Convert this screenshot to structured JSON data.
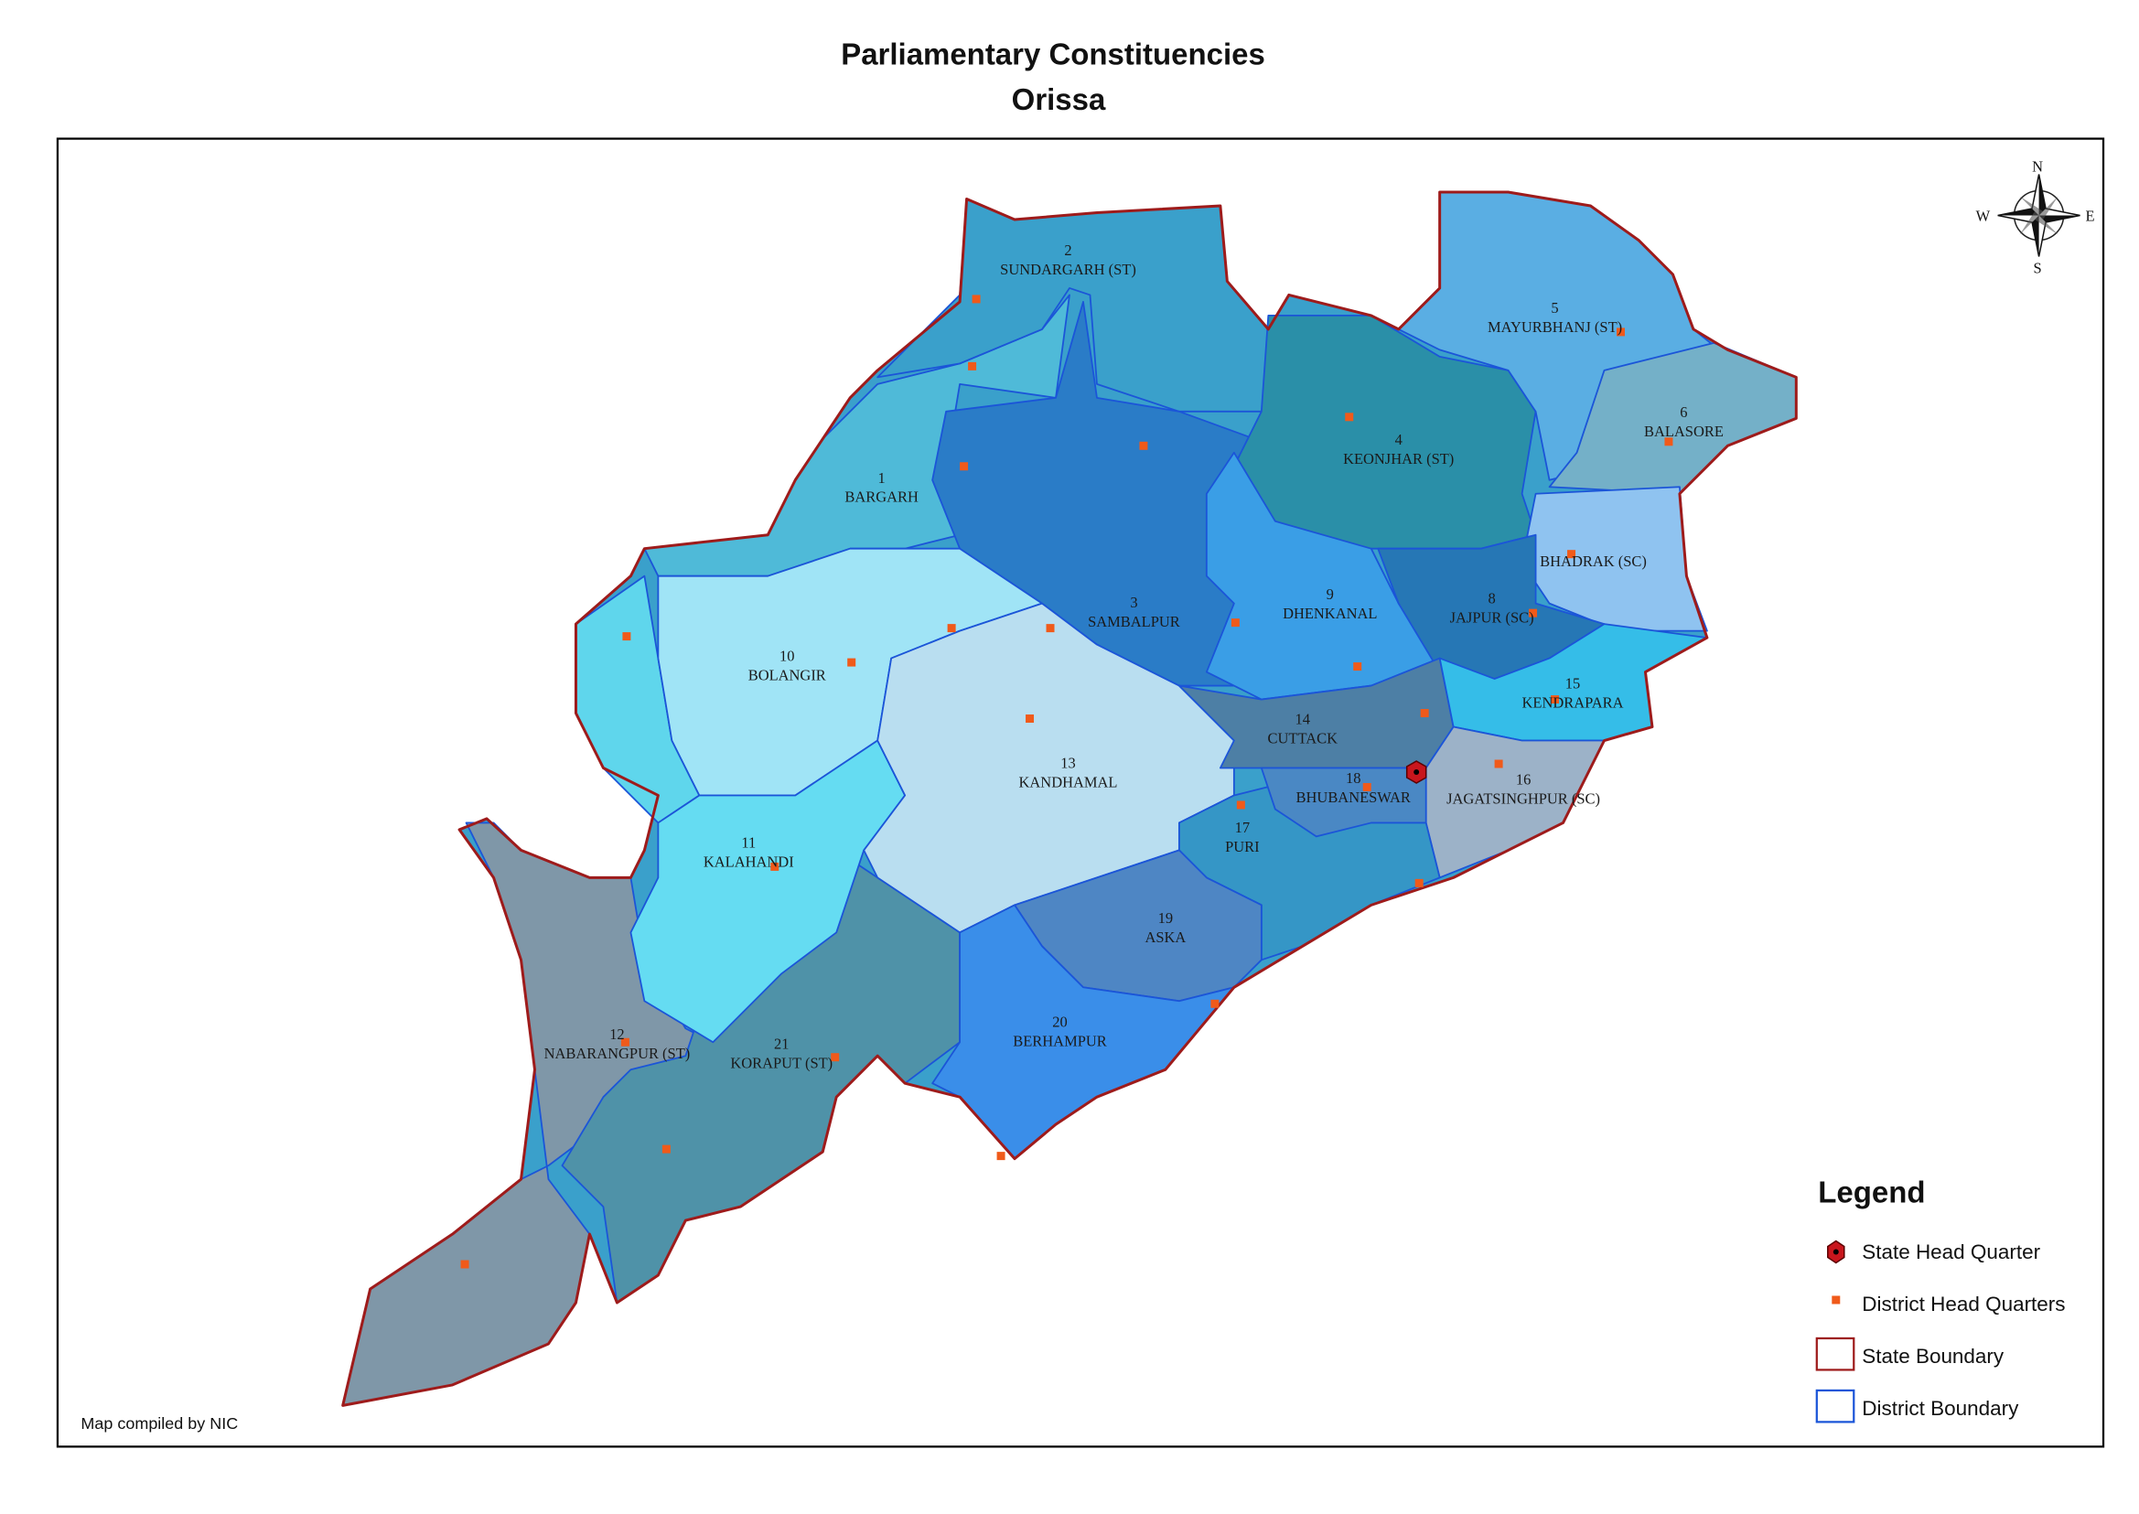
{
  "header": {
    "title": "Parliamentary Constituencies",
    "subtitle": "Orissa"
  },
  "constituencies": [
    {
      "number": 1,
      "name": "BARGARH"
    },
    {
      "number": 2,
      "name": "SUNDARGARH (ST)"
    },
    {
      "number": 3,
      "name": "SAMBALPUR"
    },
    {
      "number": 4,
      "name": "KEONJHAR (ST)"
    },
    {
      "number": 5,
      "name": "MAYURBHANJ (ST)"
    },
    {
      "number": 6,
      "name": "BALASORE"
    },
    {
      "name": "BHADRAK (SC)"
    },
    {
      "number": 8,
      "name": "JAJPUR (SC)"
    },
    {
      "number": 9,
      "name": "DHENKANAL"
    },
    {
      "number": 10,
      "name": "BOLANGIR"
    },
    {
      "number": 11,
      "name": "KALAHANDI"
    },
    {
      "number": 12,
      "name": "NABARANGPUR (ST)"
    },
    {
      "number": 13,
      "name": "KANDHAMAL"
    },
    {
      "number": 14,
      "name": "CUTTACK"
    },
    {
      "number": 15,
      "name": "KENDRAPARA"
    },
    {
      "number": 16,
      "name": "JAGATSINGHPUR (SC)"
    },
    {
      "number": 17,
      "name": "PURI"
    },
    {
      "number": 18,
      "name": "BHUBANESWAR"
    },
    {
      "number": 19,
      "name": "ASKA"
    },
    {
      "number": 20,
      "name": "BERHAMPUR"
    },
    {
      "number": 21,
      "name": "KORAPUT (ST)"
    }
  ],
  "compass": {
    "n": "N",
    "s": "S",
    "e": "E",
    "w": "W"
  },
  "legend": {
    "title": "Legend",
    "items": [
      "State  Head Quarter",
      "District Head Quarters",
      "State Boundary",
      "District Boundary"
    ]
  },
  "credit": "Map compiled by NIC"
}
